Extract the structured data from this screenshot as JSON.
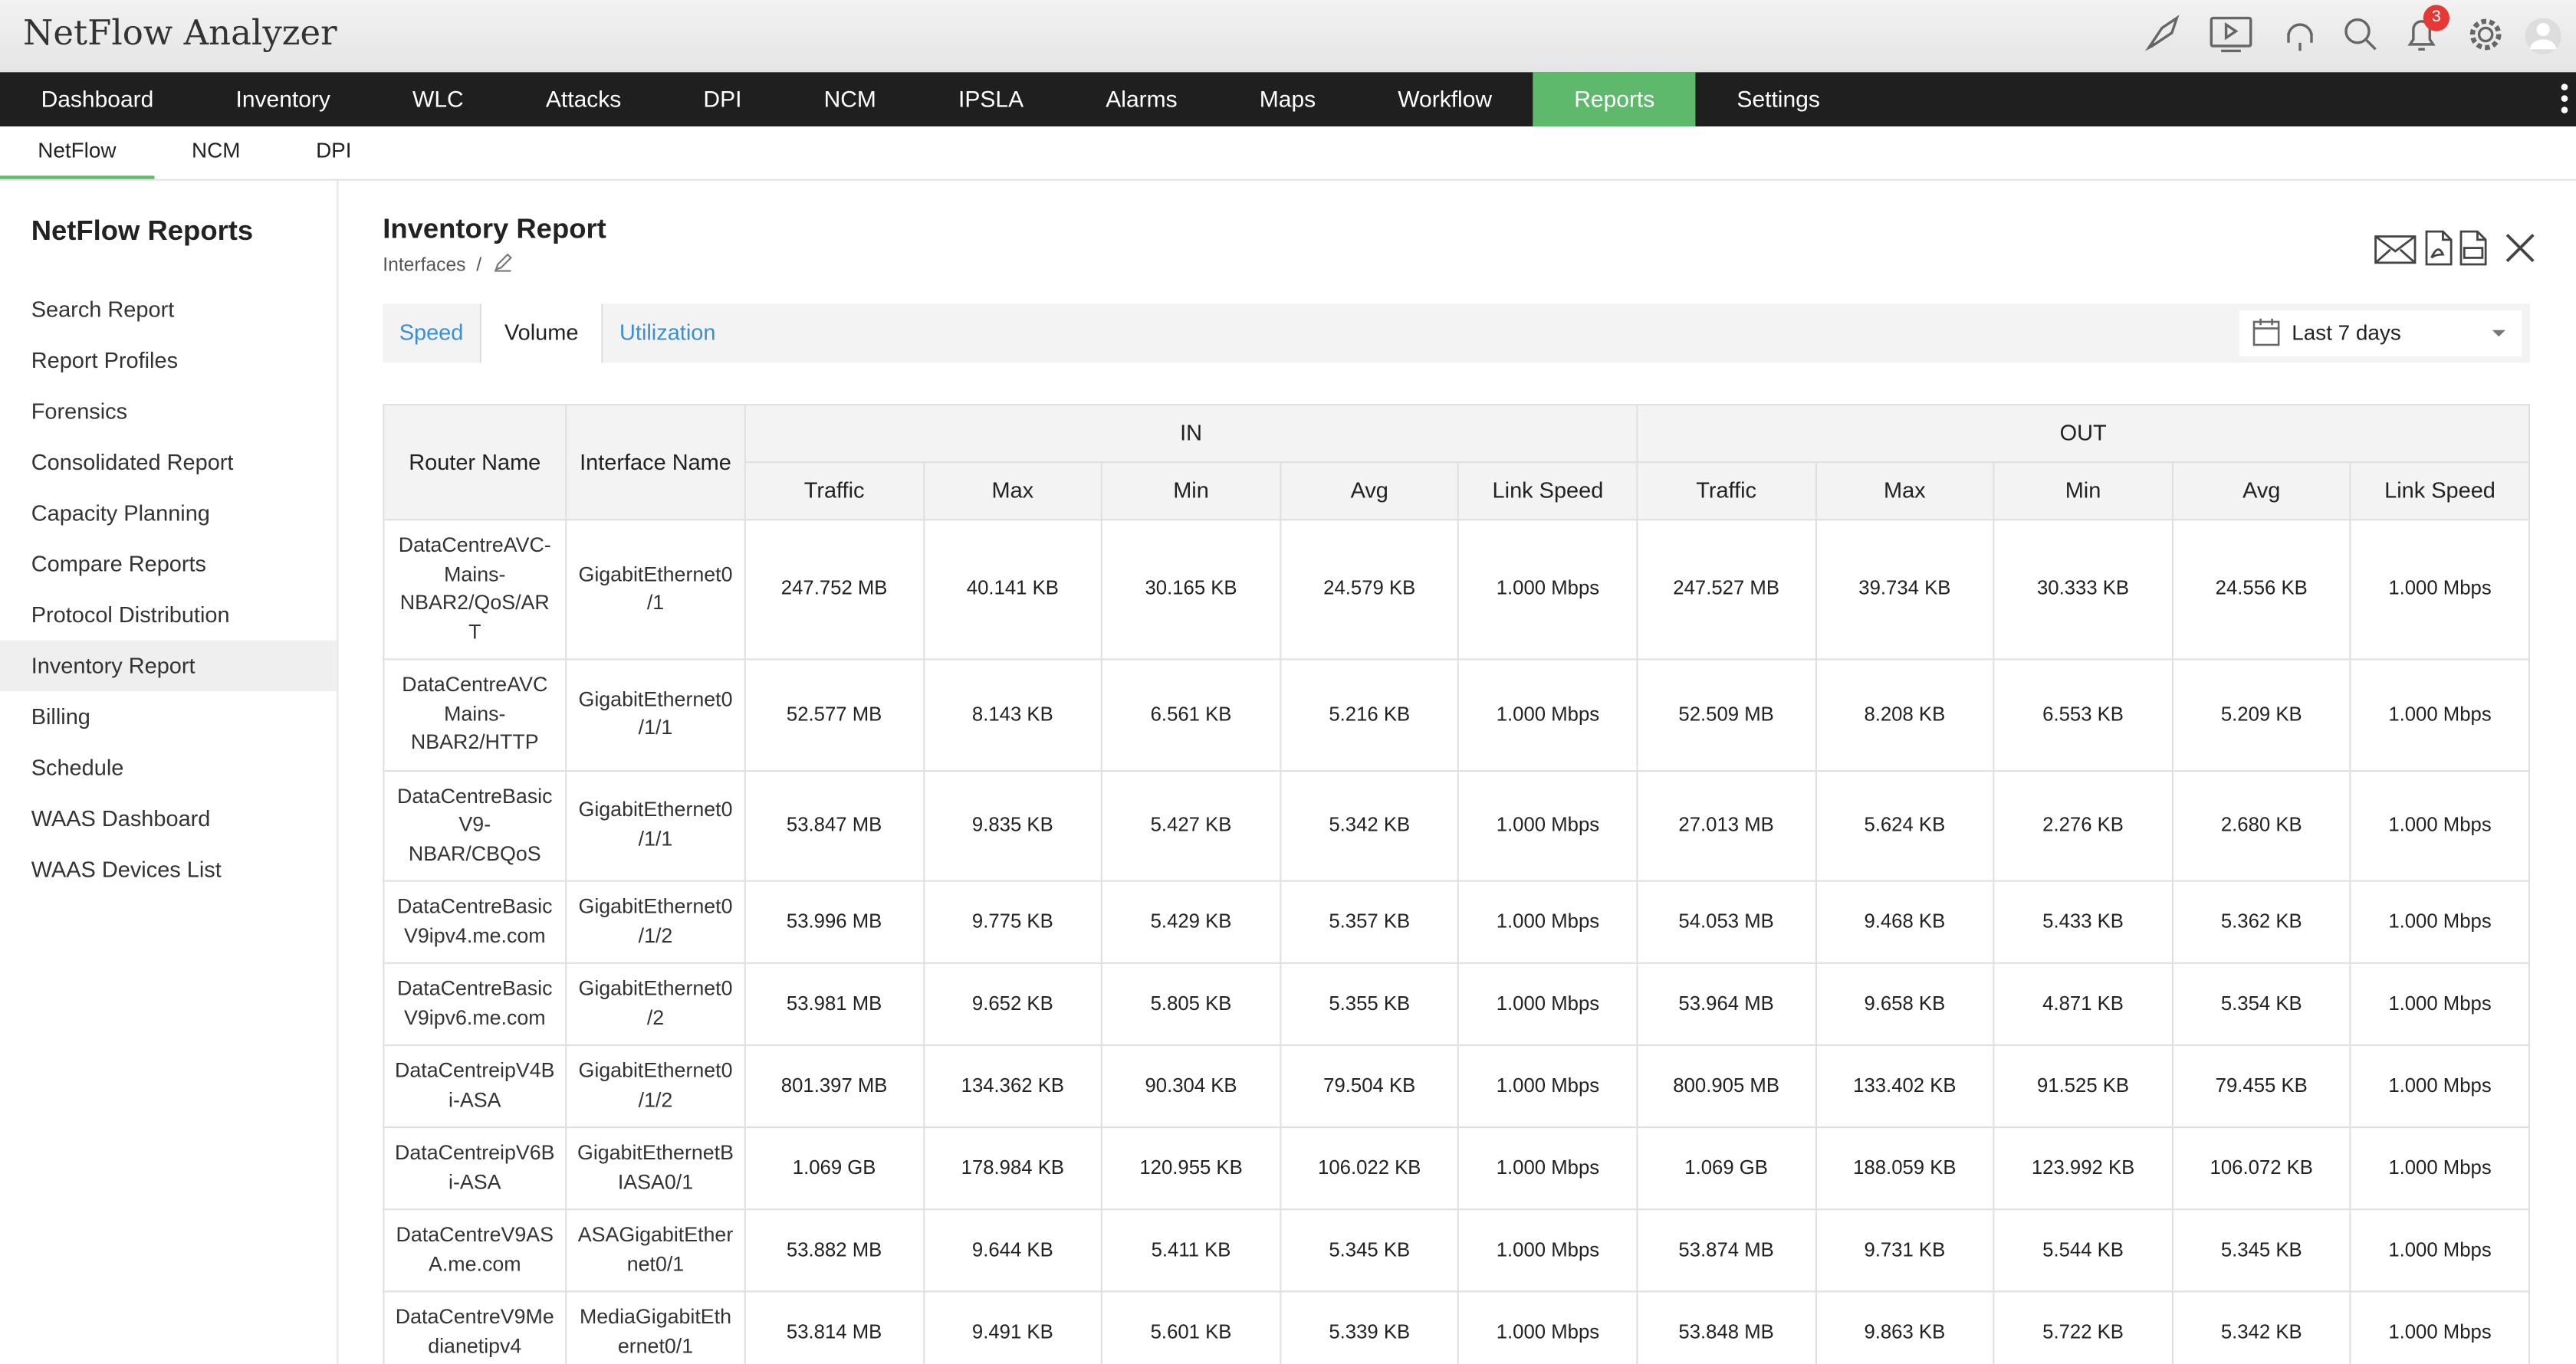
{
  "header": {
    "title": "NetFlow Analyzer",
    "notification_count": 3
  },
  "nav": {
    "items": [
      "Dashboard",
      "Inventory",
      "WLC",
      "Attacks",
      "DPI",
      "NCM",
      "IPSLA",
      "Alarms",
      "Maps",
      "Workflow",
      "Reports",
      "Settings"
    ],
    "active": 10
  },
  "subnav": {
    "items": [
      "NetFlow",
      "NCM",
      "DPI"
    ],
    "active": 0
  },
  "sidebar": {
    "title": "NetFlow Reports",
    "items": [
      "Search Report",
      "Report Profiles",
      "Forensics",
      "Consolidated Report",
      "Capacity Planning",
      "Compare Reports",
      "Protocol Distribution",
      "Inventory Report",
      "Billing",
      "Schedule",
      "WAAS Dashboard",
      "WAAS Devices List"
    ],
    "active": 7
  },
  "report": {
    "title": "Inventory Report",
    "breadcrumb": "Interfaces",
    "separator": "/",
    "tabs": [
      "Speed",
      "Volume",
      "Utilization"
    ],
    "active_tab": 1,
    "date_range": "Last 7 days"
  },
  "table": {
    "headers": {
      "router": "Router Name",
      "interface": "Interface Name",
      "in": "IN",
      "out": "OUT",
      "in_columns": [
        "Traffic",
        "Max",
        "Min",
        "Avg",
        "Link Speed"
      ],
      "out_columns": [
        "Traffic",
        "Max",
        "Min",
        "Avg",
        "Link Speed"
      ]
    },
    "rows": [
      [
        "DataCentreAVC-Mains-NBAR2/QoS/ART",
        "GigabitEthernet0/1",
        "247.752 MB",
        "40.141 KB",
        "30.165 KB",
        "24.579 KB",
        "1.000 Mbps",
        "247.527 MB",
        "39.734 KB",
        "30.333 KB",
        "24.556 KB",
        "1.000 Mbps"
      ],
      [
        "DataCentreAVC Mains-NBAR2/HTTP",
        "GigabitEthernet0/1/1",
        "52.577 MB",
        "8.143 KB",
        "6.561 KB",
        "5.216 KB",
        "1.000 Mbps",
        "52.509 MB",
        "8.208 KB",
        "6.553 KB",
        "5.209 KB",
        "1.000 Mbps"
      ],
      [
        "DataCentreBasicV9-NBAR/CBQoS",
        "GigabitEthernet0/1/1",
        "53.847 MB",
        "9.835 KB",
        "5.427 KB",
        "5.342 KB",
        "1.000 Mbps",
        "27.013 MB",
        "5.624 KB",
        "2.276 KB",
        "2.680 KB",
        "1.000 Mbps"
      ],
      [
        "DataCentreBasicV9ipv4.me.com",
        "GigabitEthernet0/1/2",
        "53.996 MB",
        "9.775 KB",
        "5.429 KB",
        "5.357 KB",
        "1.000 Mbps",
        "54.053 MB",
        "9.468 KB",
        "5.433 KB",
        "5.362 KB",
        "1.000 Mbps"
      ],
      [
        "DataCentreBasicV9ipv6.me.com",
        "GigabitEthernet0/2",
        "53.981 MB",
        "9.652 KB",
        "5.805 KB",
        "5.355 KB",
        "1.000 Mbps",
        "53.964 MB",
        "9.658 KB",
        "4.871 KB",
        "5.354 KB",
        "1.000 Mbps"
      ],
      [
        "DataCentreipV4Bi-ASA",
        "GigabitEthernet0/1/2",
        "801.397 MB",
        "134.362 KB",
        "90.304 KB",
        "79.504 KB",
        "1.000 Mbps",
        "800.905 MB",
        "133.402 KB",
        "91.525 KB",
        "79.455 KB",
        "1.000 Mbps"
      ],
      [
        "DataCentreipV6Bi-ASA",
        "GigabitEthernetBIASA0/1",
        "1.069 GB",
        "178.984 KB",
        "120.955 KB",
        "106.022 KB",
        "1.000 Mbps",
        "1.069 GB",
        "188.059 KB",
        "123.992 KB",
        "106.072 KB",
        "1.000 Mbps"
      ],
      [
        "DataCentreV9ASA.me.com",
        "ASAGigabitEthernet0/1",
        "53.882 MB",
        "9.644 KB",
        "5.411 KB",
        "5.345 KB",
        "1.000 Mbps",
        "53.874 MB",
        "9.731 KB",
        "5.544 KB",
        "5.345 KB",
        "1.000 Mbps"
      ],
      [
        "DataCentreV9Medianetipv4",
        "MediaGigabitEthernet0/1",
        "53.814 MB",
        "9.491 KB",
        "5.601 KB",
        "5.339 KB",
        "1.000 Mbps",
        "53.848 MB",
        "9.863 KB",
        "5.722 KB",
        "5.342 KB",
        "1.000 Mbps"
      ]
    ]
  }
}
